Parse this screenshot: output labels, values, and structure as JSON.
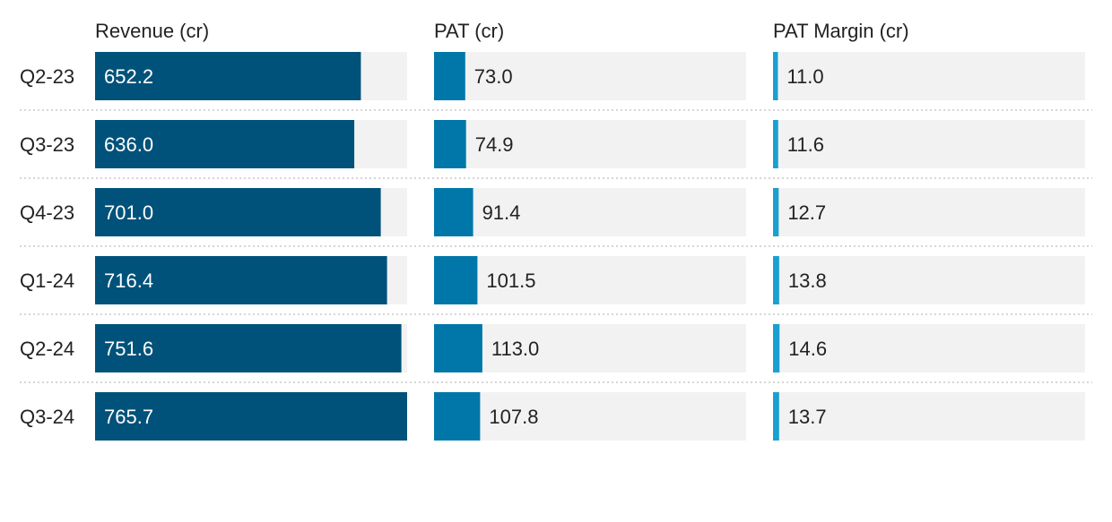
{
  "chart_data": {
    "type": "bar",
    "orientation": "horizontal",
    "categories": [
      "Q2-23",
      "Q3-23",
      "Q4-23",
      "Q1-24",
      "Q2-24",
      "Q3-24"
    ],
    "series": [
      {
        "name": "Revenue (cr)",
        "values": [
          652.2,
          636.0,
          701.0,
          716.4,
          751.6,
          765.7
        ],
        "labels": [
          "652.2",
          "636.0",
          "701.0",
          "716.4",
          "751.6",
          "765.7"
        ],
        "color": "#00527a",
        "label_position": "inside",
        "max": 765.7
      },
      {
        "name": "PAT (cr)",
        "values": [
          73.0,
          74.9,
          91.4,
          101.5,
          113.0,
          107.8
        ],
        "labels": [
          "73.0",
          "74.9",
          "91.4",
          "101.5",
          "113.0",
          "107.8"
        ],
        "color": "#0077a8",
        "label_position": "outside",
        "max": 730
      },
      {
        "name": "PAT Margin (cr)",
        "values": [
          11.0,
          11.6,
          12.7,
          13.8,
          14.6,
          13.7
        ],
        "labels": [
          "11.0",
          "11.6",
          "12.7",
          "13.8",
          "14.6",
          "13.7"
        ],
        "color": "#1aa0d0",
        "label_position": "outside",
        "max": 700
      }
    ],
    "track_color": "#f2f2f2",
    "separator_color": "#c8c8c8",
    "text_color": "#222222",
    "inside_label_color": "#ffffff",
    "grid": false,
    "legend": "none"
  }
}
